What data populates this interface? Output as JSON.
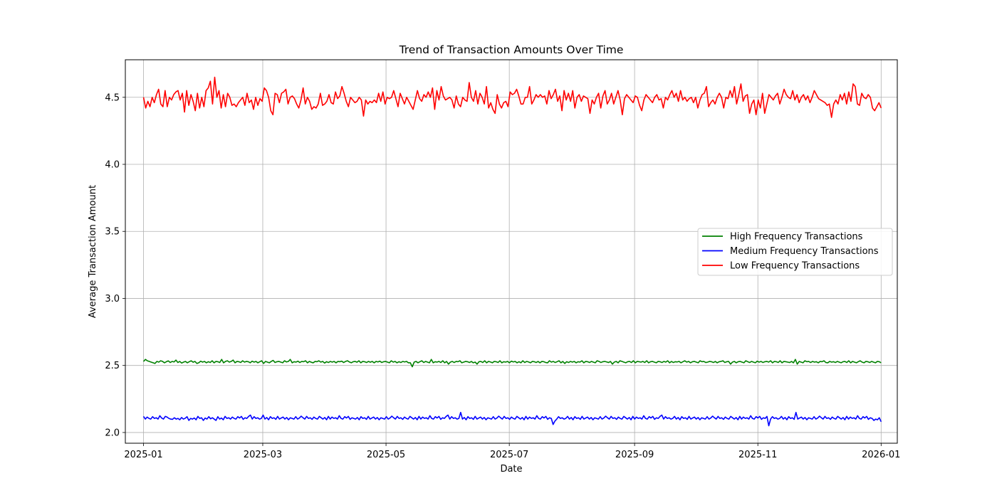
{
  "chart_data": {
    "type": "line",
    "title": "Trend of Transaction Amounts Over Time",
    "xlabel": "Date",
    "ylabel": "Average Transaction Amount",
    "x_range": [
      "2024-12-23",
      "2026-01-09"
    ],
    "ylim": [
      1.92,
      4.78
    ],
    "x_ticks": [
      "2025-01-01",
      "2025-03-01",
      "2025-05-01",
      "2025-07-01",
      "2025-09-01",
      "2025-11-01",
      "2026-01-01"
    ],
    "x_tick_labels": [
      "2025-01",
      "2025-03",
      "2025-05",
      "2025-07",
      "2025-09",
      "2025-11",
      "2026-01"
    ],
    "y_ticks": [
      2.0,
      2.5,
      3.0,
      3.5,
      4.0,
      4.5
    ],
    "y_tick_labels": [
      "2.0",
      "2.5",
      "3.0",
      "3.5",
      "4.0",
      "4.5"
    ],
    "grid": true,
    "legend_position": "center-right",
    "x_start": "2025-01-01",
    "x_end": "2026-01-01",
    "x_step_days": 1,
    "series": [
      {
        "name": "High Frequency Transactions",
        "color": "#008000",
        "values": [
          2.53,
          2.545,
          2.535,
          2.53,
          2.525,
          2.52,
          2.515,
          2.53,
          2.525,
          2.535,
          2.53,
          2.52,
          2.528,
          2.534,
          2.522,
          2.53,
          2.526,
          2.54,
          2.522,
          2.53,
          2.518,
          2.525,
          2.53,
          2.52,
          2.528,
          2.535,
          2.524,
          2.53,
          2.515,
          2.52,
          2.532,
          2.525,
          2.53,
          2.52,
          2.528,
          2.522,
          2.535,
          2.52,
          2.53,
          2.528,
          2.522,
          2.545,
          2.52,
          2.53,
          2.535,
          2.525,
          2.53,
          2.54,
          2.52,
          2.53,
          2.528,
          2.522,
          2.535,
          2.525,
          2.53,
          2.528,
          2.52,
          2.532,
          2.525,
          2.53,
          2.52,
          2.528,
          2.535,
          2.515,
          2.53,
          2.525,
          2.52,
          2.53,
          2.538,
          2.522,
          2.528,
          2.53,
          2.525,
          2.52,
          2.535,
          2.526,
          2.53,
          2.545,
          2.52,
          2.528,
          2.525,
          2.532,
          2.522,
          2.53,
          2.528,
          2.535,
          2.52,
          2.53,
          2.524,
          2.52,
          2.53,
          2.528,
          2.535,
          2.525,
          2.53,
          2.518,
          2.528,
          2.522,
          2.53,
          2.525,
          2.53,
          2.52,
          2.53,
          2.528,
          2.532,
          2.522,
          2.53,
          2.535,
          2.526,
          2.52,
          2.528,
          2.53,
          2.524,
          2.535,
          2.52,
          2.53,
          2.528,
          2.522,
          2.53,
          2.524,
          2.53,
          2.52,
          2.53,
          2.526,
          2.532,
          2.522,
          2.528,
          2.53,
          2.525,
          2.52,
          2.535,
          2.525,
          2.53,
          2.52,
          2.528,
          2.522,
          2.53,
          2.526,
          2.53,
          2.52,
          2.52,
          2.49,
          2.525,
          2.53,
          2.52,
          2.528,
          2.535,
          2.522,
          2.53,
          2.525,
          2.52,
          2.545,
          2.52,
          2.528,
          2.525,
          2.53,
          2.522,
          2.535,
          2.52,
          2.53,
          2.51,
          2.525,
          2.53,
          2.522,
          2.53,
          2.528,
          2.535,
          2.52,
          2.525,
          2.53,
          2.528,
          2.522,
          2.53,
          2.52,
          2.525,
          2.51,
          2.528,
          2.53,
          2.522,
          2.535,
          2.52,
          2.53,
          2.526,
          2.52,
          2.53,
          2.528,
          2.522,
          2.535,
          2.52,
          2.528,
          2.525,
          2.53,
          2.52,
          2.532,
          2.526,
          2.53,
          2.52,
          2.528,
          2.52,
          2.535,
          2.522,
          2.53,
          2.526,
          2.52,
          2.53,
          2.528,
          2.522,
          2.53,
          2.52,
          2.53,
          2.528,
          2.522,
          2.52,
          2.535,
          2.525,
          2.53,
          2.522,
          2.528,
          2.535,
          2.52,
          2.53,
          2.515,
          2.528,
          2.522,
          2.53,
          2.525,
          2.53,
          2.52,
          2.528,
          2.525,
          2.535,
          2.52,
          2.53,
          2.528,
          2.522,
          2.53,
          2.525,
          2.52,
          2.535,
          2.53,
          2.522,
          2.528,
          2.53,
          2.526,
          2.522,
          2.53,
          2.51,
          2.525,
          2.53,
          2.52,
          2.535,
          2.53,
          2.525,
          2.52,
          2.528,
          2.53,
          2.522,
          2.535,
          2.52,
          2.53,
          2.528,
          2.525,
          2.53,
          2.522,
          2.535,
          2.52,
          2.528,
          2.53,
          2.525,
          2.52,
          2.53,
          2.528,
          2.522,
          2.53,
          2.525,
          2.535,
          2.52,
          2.53,
          2.522,
          2.528,
          2.526,
          2.53,
          2.52,
          2.528,
          2.535,
          2.525,
          2.53,
          2.52,
          2.528,
          2.53,
          2.525,
          2.52,
          2.535,
          2.528,
          2.53,
          2.522,
          2.525,
          2.53,
          2.528,
          2.522,
          2.53,
          2.52,
          2.528,
          2.53,
          2.535,
          2.522,
          2.528,
          2.53,
          2.51,
          2.525,
          2.53,
          2.52,
          2.528,
          2.53,
          2.525,
          2.52,
          2.535,
          2.528,
          2.522,
          2.53,
          2.525,
          2.52,
          2.532,
          2.525,
          2.53,
          2.522,
          2.528,
          2.53,
          2.525,
          2.535,
          2.52,
          2.53,
          2.528,
          2.522,
          2.535,
          2.52,
          2.53,
          2.528,
          2.525,
          2.522,
          2.53,
          2.52,
          2.545,
          2.51,
          2.53,
          2.525,
          2.52,
          2.535,
          2.528,
          2.53,
          2.522,
          2.53,
          2.525,
          2.528,
          2.52,
          2.53,
          2.528,
          2.535,
          2.522,
          2.52,
          2.53,
          2.525,
          2.528,
          2.522,
          2.53,
          2.525,
          2.52,
          2.528,
          2.53,
          2.522,
          2.535,
          2.52,
          2.53,
          2.525,
          2.52,
          2.528,
          2.535,
          2.525,
          2.52,
          2.53,
          2.528,
          2.522,
          2.53,
          2.525,
          2.52,
          2.53,
          2.528,
          2.52
        ]
      },
      {
        "name": "Medium Frequency Transactions",
        "color": "#0000ff",
        "values": [
          2.12,
          2.1,
          2.115,
          2.105,
          2.1,
          2.118,
          2.105,
          2.11,
          2.1,
          2.125,
          2.108,
          2.1,
          2.12,
          2.115,
          2.105,
          2.1,
          2.098,
          2.11,
          2.1,
          2.105,
          2.095,
          2.112,
          2.1,
          2.106,
          2.118,
          2.09,
          2.105,
          2.1,
          2.108,
          2.095,
          2.12,
          2.105,
          2.11,
          2.09,
          2.108,
          2.1,
          2.118,
          2.102,
          2.11,
          2.1,
          2.09,
          2.118,
          2.1,
          2.108,
          2.095,
          2.12,
          2.105,
          2.11,
          2.1,
          2.115,
          2.105,
          2.1,
          2.118,
          2.108,
          2.12,
          2.098,
          2.11,
          2.105,
          2.12,
          2.13,
          2.1,
          2.118,
          2.105,
          2.11,
          2.1,
          2.105,
          2.13,
          2.1,
          2.112,
          2.095,
          2.118,
          2.105,
          2.11,
          2.098,
          2.12,
          2.1,
          2.108,
          2.115,
          2.1,
          2.112,
          2.095,
          2.11,
          2.105,
          2.1,
          2.118,
          2.1,
          2.108,
          2.122,
          2.11,
          2.1,
          2.12,
          2.105,
          2.11,
          2.098,
          2.115,
          2.105,
          2.1,
          2.12,
          2.11,
          2.1,
          2.112,
          2.095,
          2.12,
          2.1,
          2.115,
          2.105,
          2.11,
          2.1,
          2.125,
          2.105,
          2.1,
          2.118,
          2.108,
          2.12,
          2.098,
          2.11,
          2.105,
          2.1,
          2.112,
          2.095,
          2.118,
          2.105,
          2.11,
          2.098,
          2.12,
          2.1,
          2.108,
          2.115,
          2.1,
          2.112,
          2.095,
          2.11,
          2.105,
          2.1,
          2.118,
          2.1,
          2.108,
          2.122,
          2.11,
          2.1,
          2.12,
          2.105,
          2.11,
          2.098,
          2.115,
          2.105,
          2.1,
          2.12,
          2.11,
          2.1,
          2.112,
          2.095,
          2.12,
          2.1,
          2.115,
          2.105,
          2.11,
          2.1,
          2.125,
          2.105,
          2.1,
          2.118,
          2.108,
          2.12,
          2.098,
          2.11,
          2.105,
          2.12,
          2.13,
          2.1,
          2.118,
          2.105,
          2.11,
          2.1,
          2.105,
          2.15,
          2.1,
          2.112,
          2.095,
          2.118,
          2.105,
          2.11,
          2.098,
          2.12,
          2.1,
          2.108,
          2.115,
          2.1,
          2.112,
          2.095,
          2.11,
          2.105,
          2.1,
          2.118,
          2.1,
          2.108,
          2.122,
          2.11,
          2.1,
          2.12,
          2.105,
          2.11,
          2.098,
          2.115,
          2.105,
          2.1,
          2.12,
          2.11,
          2.1,
          2.112,
          2.095,
          2.12,
          2.1,
          2.115,
          2.105,
          2.11,
          2.1,
          2.125,
          2.105,
          2.1,
          2.118,
          2.108,
          2.12,
          2.098,
          2.11,
          2.105,
          2.06,
          2.085,
          2.1,
          2.118,
          2.105,
          2.11,
          2.1,
          2.105,
          2.12,
          2.1,
          2.112,
          2.095,
          2.118,
          2.105,
          2.11,
          2.098,
          2.12,
          2.1,
          2.108,
          2.115,
          2.1,
          2.112,
          2.095,
          2.11,
          2.105,
          2.1,
          2.118,
          2.1,
          2.108,
          2.122,
          2.11,
          2.1,
          2.12,
          2.105,
          2.11,
          2.098,
          2.115,
          2.105,
          2.1,
          2.12,
          2.11,
          2.1,
          2.112,
          2.095,
          2.12,
          2.1,
          2.115,
          2.105,
          2.11,
          2.1,
          2.125,
          2.105,
          2.1,
          2.118,
          2.108,
          2.12,
          2.098,
          2.11,
          2.105,
          2.12,
          2.13,
          2.1,
          2.118,
          2.105,
          2.11,
          2.1,
          2.105,
          2.12,
          2.1,
          2.112,
          2.095,
          2.118,
          2.105,
          2.11,
          2.098,
          2.12,
          2.1,
          2.108,
          2.115,
          2.1,
          2.112,
          2.095,
          2.11,
          2.105,
          2.1,
          2.118,
          2.1,
          2.108,
          2.122,
          2.11,
          2.1,
          2.12,
          2.105,
          2.11,
          2.098,
          2.115,
          2.105,
          2.1,
          2.12,
          2.11,
          2.1,
          2.112,
          2.095,
          2.12,
          2.1,
          2.115,
          2.105,
          2.11,
          2.1,
          2.125,
          2.105,
          2.1,
          2.118,
          2.108,
          2.12,
          2.098,
          2.11,
          2.105,
          2.12,
          2.05,
          2.1,
          2.118,
          2.105,
          2.11,
          2.1,
          2.105,
          2.12,
          2.1,
          2.112,
          2.095,
          2.118,
          2.105,
          2.11,
          2.098,
          2.15,
          2.1,
          2.108,
          2.115,
          2.1,
          2.112,
          2.095,
          2.11,
          2.105,
          2.1,
          2.118,
          2.1,
          2.108,
          2.122,
          2.11,
          2.1,
          2.12,
          2.105,
          2.11,
          2.098,
          2.115,
          2.105,
          2.1,
          2.12,
          2.11,
          2.1,
          2.112,
          2.095,
          2.12,
          2.1,
          2.115,
          2.105,
          2.11,
          2.1,
          2.125,
          2.105,
          2.1,
          2.118,
          2.108,
          2.12,
          2.098,
          2.11,
          2.105,
          2.09,
          2.1,
          2.095,
          2.11,
          2.08
        ]
      },
      {
        "name": "Low Frequency Transactions",
        "color": "#ff0000",
        "values": [
          4.5,
          4.42,
          4.47,
          4.43,
          4.5,
          4.46,
          4.52,
          4.56,
          4.45,
          4.43,
          4.55,
          4.43,
          4.5,
          4.48,
          4.52,
          4.54,
          4.55,
          4.48,
          4.53,
          4.39,
          4.55,
          4.44,
          4.52,
          4.47,
          4.4,
          4.53,
          4.42,
          4.5,
          4.43,
          4.55,
          4.57,
          4.62,
          4.45,
          4.65,
          4.5,
          4.55,
          4.42,
          4.52,
          4.43,
          4.53,
          4.5,
          4.44,
          4.45,
          4.43,
          4.46,
          4.48,
          4.5,
          4.44,
          4.53,
          4.46,
          4.48,
          4.41,
          4.5,
          4.44,
          4.49,
          4.47,
          4.57,
          4.55,
          4.5,
          4.4,
          4.37,
          4.53,
          4.52,
          4.46,
          4.53,
          4.54,
          4.56,
          4.45,
          4.5,
          4.51,
          4.49,
          4.45,
          4.42,
          4.48,
          4.57,
          4.45,
          4.5,
          4.47,
          4.41,
          4.43,
          4.42,
          4.45,
          4.53,
          4.44,
          4.45,
          4.47,
          4.52,
          4.46,
          4.45,
          4.54,
          4.49,
          4.51,
          4.58,
          4.53,
          4.47,
          4.43,
          4.5,
          4.48,
          4.46,
          4.47,
          4.5,
          4.48,
          4.36,
          4.48,
          4.45,
          4.47,
          4.46,
          4.48,
          4.46,
          4.53,
          4.47,
          4.54,
          4.45,
          4.5,
          4.49,
          4.5,
          4.55,
          4.49,
          4.43,
          4.53,
          4.49,
          4.45,
          4.5,
          4.47,
          4.44,
          4.41,
          4.48,
          4.55,
          4.49,
          4.47,
          4.52,
          4.5,
          4.54,
          4.5,
          4.57,
          4.41,
          4.55,
          4.48,
          4.58,
          4.51,
          4.48,
          4.49,
          4.5,
          4.48,
          4.42,
          4.51,
          4.45,
          4.43,
          4.5,
          4.48,
          4.47,
          4.61,
          4.5,
          4.47,
          4.55,
          4.45,
          4.53,
          4.5,
          4.45,
          4.58,
          4.42,
          4.46,
          4.41,
          4.38,
          4.52,
          4.45,
          4.42,
          4.46,
          4.47,
          4.43,
          4.54,
          4.52,
          4.53,
          4.56,
          4.51,
          4.45,
          4.45,
          4.5,
          4.5,
          4.58,
          4.45,
          4.48,
          4.52,
          4.5,
          4.52,
          4.5,
          4.51,
          4.45,
          4.55,
          4.49,
          4.52,
          4.56,
          4.47,
          4.51,
          4.4,
          4.55,
          4.48,
          4.53,
          4.47,
          4.55,
          4.42,
          4.5,
          4.52,
          4.47,
          4.51,
          4.5,
          4.49,
          4.38,
          4.48,
          4.45,
          4.5,
          4.53,
          4.42,
          4.51,
          4.55,
          4.45,
          4.48,
          4.53,
          4.45,
          4.5,
          4.55,
          4.48,
          4.37,
          4.49,
          4.52,
          4.5,
          4.48,
          4.46,
          4.51,
          4.5,
          4.44,
          4.4,
          4.48,
          4.52,
          4.5,
          4.48,
          4.46,
          4.5,
          4.52,
          4.48,
          4.49,
          4.42,
          4.5,
          4.48,
          4.52,
          4.55,
          4.5,
          4.53,
          4.47,
          4.55,
          4.48,
          4.5,
          4.47,
          4.49,
          4.5,
          4.46,
          4.5,
          4.42,
          4.48,
          4.52,
          4.53,
          4.58,
          4.43,
          4.46,
          4.48,
          4.45,
          4.5,
          4.53,
          4.5,
          4.42,
          4.5,
          4.49,
          4.55,
          4.5,
          4.58,
          4.45,
          4.52,
          4.6,
          4.47,
          4.51,
          4.52,
          4.38,
          4.45,
          4.48,
          4.37,
          4.48,
          4.42,
          4.53,
          4.38,
          4.45,
          4.52,
          4.5,
          4.48,
          4.51,
          4.53,
          4.45,
          4.5,
          4.56,
          4.52,
          4.5,
          4.49,
          4.55,
          4.48,
          4.52,
          4.46,
          4.5,
          4.52,
          4.48,
          4.51,
          4.46,
          4.5,
          4.55,
          4.52,
          4.49,
          4.48,
          4.47,
          4.46,
          4.44,
          4.45,
          4.35,
          4.45,
          4.48,
          4.45,
          4.52,
          4.48,
          4.53,
          4.45,
          4.54,
          4.47,
          4.6,
          4.58,
          4.45,
          4.44,
          4.53,
          4.5,
          4.49,
          4.52,
          4.5,
          4.42,
          4.4,
          4.43,
          4.46,
          4.42
        ]
      }
    ]
  }
}
